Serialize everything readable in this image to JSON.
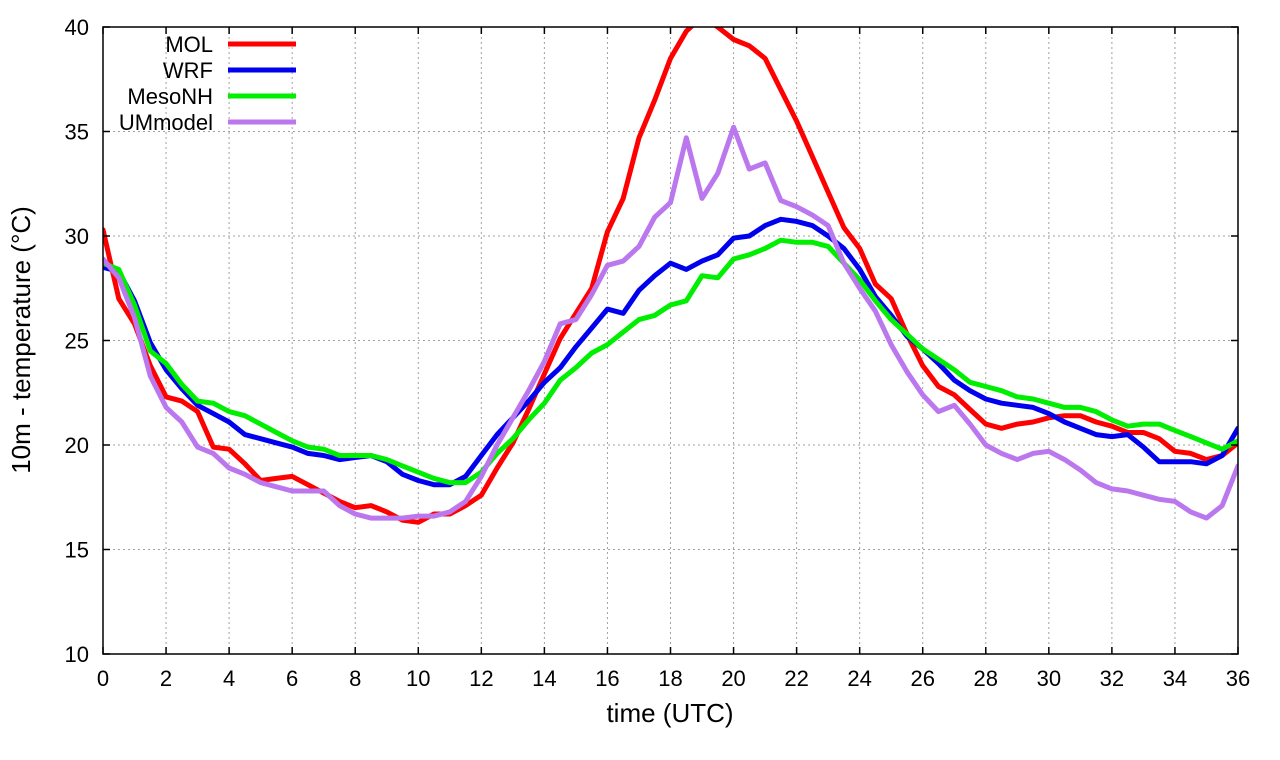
{
  "chart_data": {
    "type": "line",
    "title": "",
    "xlabel": "time (UTC)",
    "ylabel": "10m - temperature (°C)",
    "xlim": [
      0,
      36
    ],
    "ylim": [
      10,
      40
    ],
    "xticks": [
      0,
      2,
      4,
      6,
      8,
      10,
      12,
      14,
      16,
      18,
      20,
      22,
      24,
      26,
      28,
      30,
      32,
      34,
      36
    ],
    "yticks": [
      10,
      15,
      20,
      25,
      30,
      35,
      40
    ],
    "grid": true,
    "legend_position": "top-left",
    "x": [
      0,
      0.5,
      1,
      1.5,
      2,
      2.5,
      3,
      3.5,
      4,
      4.5,
      5,
      5.5,
      6,
      6.5,
      7,
      7.5,
      8,
      8.5,
      9,
      9.5,
      10,
      10.5,
      11,
      11.5,
      12,
      12.5,
      13,
      13.5,
      14,
      14.5,
      15,
      15.5,
      16,
      16.5,
      17,
      17.5,
      18,
      18.5,
      19,
      19.5,
      20,
      20.5,
      21,
      21.5,
      22,
      22.5,
      23,
      23.5,
      24,
      24.5,
      25,
      25.5,
      26,
      26.5,
      27,
      27.5,
      28,
      28.5,
      29,
      29.5,
      30,
      30.5,
      31,
      31.5,
      32,
      32.5,
      33,
      33.5,
      34,
      34.5,
      35,
      35.5,
      36
    ],
    "series": [
      {
        "name": "MOL",
        "color": "#ff0000",
        "values": [
          30.3,
          27.0,
          25.8,
          23.8,
          22.3,
          22.1,
          21.6,
          19.9,
          19.8,
          19.1,
          18.3,
          18.4,
          18.5,
          18.1,
          17.7,
          17.3,
          17.0,
          17.1,
          16.8,
          16.4,
          16.3,
          16.7,
          16.7,
          17.1,
          17.6,
          18.9,
          20.1,
          21.7,
          23.4,
          25.1,
          26.3,
          27.5,
          30.2,
          31.8,
          34.7,
          36.5,
          38.5,
          39.8,
          40.5,
          40.0,
          39.4,
          39.1,
          38.5,
          37.0,
          35.5,
          33.8,
          32.1,
          30.4,
          29.4,
          27.7,
          27.0,
          25.3,
          23.8,
          22.8,
          22.4,
          21.7,
          21.0,
          20.8,
          21.0,
          21.1,
          21.3,
          21.4,
          21.4,
          21.1,
          20.9,
          20.6,
          20.6,
          20.3,
          19.7,
          19.6,
          19.3,
          19.5,
          20.1
        ]
      },
      {
        "name": "WRF",
        "color": "#0000ee",
        "values": [
          28.5,
          28.3,
          26.9,
          24.9,
          23.6,
          22.7,
          21.9,
          21.5,
          21.1,
          20.5,
          20.3,
          20.1,
          19.9,
          19.6,
          19.5,
          19.3,
          19.4,
          19.5,
          19.2,
          18.6,
          18.3,
          18.1,
          18.1,
          18.5,
          19.5,
          20.5,
          21.3,
          22.1,
          23.0,
          23.7,
          24.7,
          25.6,
          26.5,
          26.3,
          27.4,
          28.1,
          28.7,
          28.4,
          28.8,
          29.1,
          29.9,
          30.0,
          30.5,
          30.8,
          30.7,
          30.5,
          30.0,
          29.4,
          28.4,
          27.1,
          26.2,
          25.2,
          24.6,
          23.9,
          23.1,
          22.6,
          22.2,
          22.0,
          21.9,
          21.8,
          21.5,
          21.1,
          20.8,
          20.5,
          20.4,
          20.5,
          19.9,
          19.2,
          19.2,
          19.2,
          19.1,
          19.5,
          20.8
        ]
      },
      {
        "name": "MesoNH",
        "color": "#00ee00",
        "values": [
          28.7,
          28.4,
          26.7,
          24.5,
          23.9,
          22.9,
          22.1,
          22.0,
          21.6,
          21.4,
          21.0,
          20.6,
          20.2,
          19.9,
          19.8,
          19.5,
          19.5,
          19.5,
          19.3,
          19.0,
          18.7,
          18.4,
          18.2,
          18.2,
          18.7,
          19.6,
          20.3,
          21.2,
          22.0,
          23.1,
          23.7,
          24.4,
          24.8,
          25.4,
          26.0,
          26.2,
          26.7,
          26.9,
          28.1,
          28.0,
          28.9,
          29.1,
          29.4,
          29.8,
          29.7,
          29.7,
          29.5,
          28.7,
          27.9,
          26.9,
          26.0,
          25.3,
          24.6,
          24.1,
          23.6,
          23.0,
          22.8,
          22.6,
          22.3,
          22.2,
          22.0,
          21.8,
          21.8,
          21.6,
          21.2,
          20.9,
          21.0,
          21.0,
          20.7,
          20.4,
          20.1,
          19.8,
          20.2
        ]
      },
      {
        "name": "UMmodel",
        "color": "#bb77ee",
        "values": [
          28.9,
          28.0,
          26.1,
          23.3,
          21.8,
          21.1,
          19.9,
          19.6,
          18.9,
          18.6,
          18.2,
          18.0,
          17.8,
          17.8,
          17.8,
          17.1,
          16.7,
          16.5,
          16.5,
          16.5,
          16.6,
          16.6,
          16.8,
          17.3,
          18.5,
          20.0,
          21.3,
          22.6,
          24.0,
          25.8,
          26.0,
          27.2,
          28.6,
          28.8,
          29.5,
          30.9,
          31.6,
          34.7,
          31.8,
          33.0,
          35.2,
          33.2,
          33.5,
          31.7,
          31.4,
          31.0,
          30.5,
          28.7,
          27.5,
          26.4,
          24.8,
          23.5,
          22.4,
          21.6,
          21.9,
          21.0,
          20.0,
          19.6,
          19.3,
          19.6,
          19.7,
          19.3,
          18.8,
          18.2,
          17.9,
          17.8,
          17.6,
          17.4,
          17.3,
          16.8,
          16.5,
          17.1,
          19.0
        ]
      }
    ]
  }
}
